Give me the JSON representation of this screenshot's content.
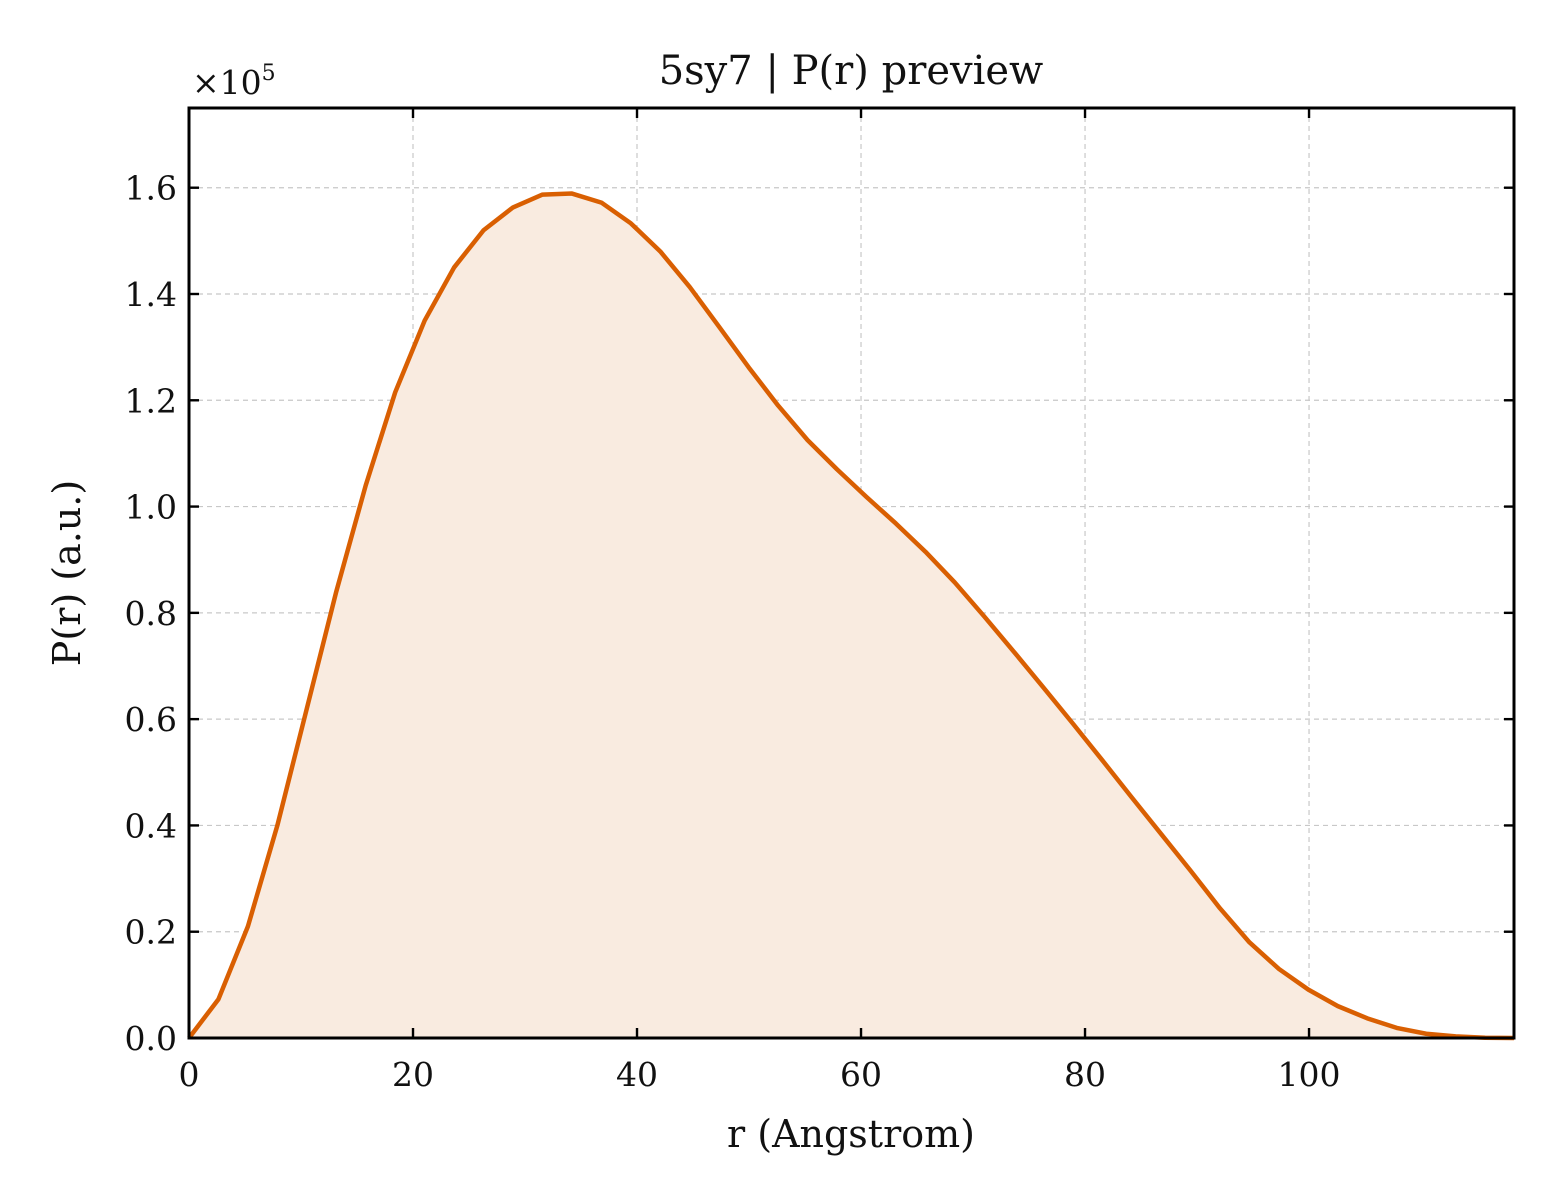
{
  "chart_data": {
    "type": "area",
    "title": "5sy7 | P(r) preview",
    "xlabel": "r (Angstrom)",
    "ylabel": "P(r) (a.u.)",
    "y_multiplier": "×10",
    "y_multiplier_exp": "5",
    "xlim": [
      0,
      118.3
    ],
    "ylim": [
      0,
      1.75
    ],
    "x_ticks": [
      0,
      20,
      40,
      60,
      80,
      100
    ],
    "x_tick_labels": [
      "0",
      "20",
      "40",
      "60",
      "80",
      "100"
    ],
    "y_ticks": [
      0,
      0.2,
      0.4,
      0.6,
      0.8,
      1.0,
      1.2,
      1.4,
      1.6
    ],
    "y_tick_labels": [
      "0.0",
      "0.2",
      "0.4",
      "0.6",
      "0.8",
      "1.0",
      "1.2",
      "1.4",
      "1.6"
    ],
    "grid": true,
    "line_color": "#d95f02",
    "fill_color": "#f9ebe0",
    "x": [
      0,
      2.63,
      5.26,
      7.89,
      10.52,
      13.15,
      15.78,
      18.41,
      21.04,
      23.67,
      26.3,
      28.93,
      31.56,
      34.19,
      36.82,
      39.45,
      42.08,
      44.71,
      47.34,
      49.97,
      52.6,
      55.23,
      57.86,
      60.49,
      63.12,
      65.75,
      68.38,
      71.01,
      73.64,
      76.27,
      78.9,
      81.53,
      84.16,
      86.79,
      89.42,
      92.05,
      94.68,
      97.31,
      99.94,
      102.57,
      105.2,
      107.83,
      110.46,
      113.09,
      115.72,
      118.3
    ],
    "y": [
      0.0,
      0.073,
      0.21,
      0.4,
      0.62,
      0.84,
      1.04,
      1.215,
      1.35,
      1.45,
      1.52,
      1.563,
      1.587,
      1.589,
      1.572,
      1.533,
      1.48,
      1.413,
      1.338,
      1.262,
      1.19,
      1.125,
      1.07,
      1.018,
      0.968,
      0.915,
      0.857,
      0.793,
      0.727,
      0.66,
      0.592,
      0.523,
      0.453,
      0.384,
      0.315,
      0.244,
      0.18,
      0.13,
      0.091,
      0.06,
      0.037,
      0.019,
      0.008,
      0.003,
      0.0005,
      0.0
    ]
  }
}
